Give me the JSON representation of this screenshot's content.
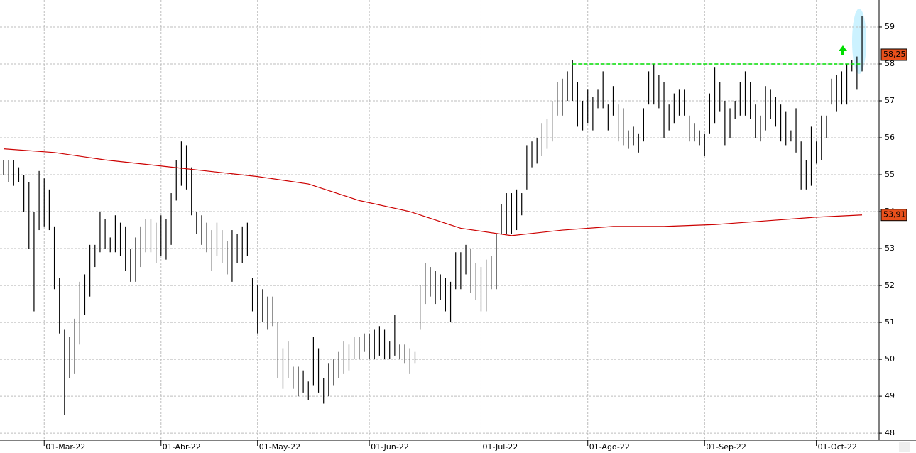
{
  "chart_data": {
    "type": "ohlc",
    "xlim": [
      -0.7,
      172.35
    ],
    "ylim": [
      47.81,
      59.73
    ],
    "yticks": [
      48,
      49,
      50,
      51,
      52,
      53,
      54,
      55,
      56,
      57,
      58,
      59
    ],
    "xticks": [
      {
        "value": 8,
        "label": "01-Mar-22"
      },
      {
        "value": 31,
        "label": "01-Abr-22"
      },
      {
        "value": 50,
        "label": "01-May-22"
      },
      {
        "value": 72,
        "label": "01-Jun-22"
      },
      {
        "value": 94,
        "label": "01-Jul-22"
      },
      {
        "value": 115,
        "label": "01-Ago-22"
      },
      {
        "value": 138,
        "label": "01-Sep-22"
      },
      {
        "value": 160,
        "label": "01-Oct-22"
      }
    ],
    "grid": true,
    "color": "#000000",
    "high": [
      55.4,
      55.4,
      55.4,
      55.2,
      55.0,
      54.8,
      54.0,
      55.1,
      54.9,
      54.6,
      53.6,
      52.2,
      50.8,
      50.6,
      51.1,
      52.1,
      52.3,
      53.1,
      53.1,
      54.0,
      53.8,
      53.3,
      53.9,
      53.7,
      53.6,
      53.0,
      53.3,
      53.6,
      53.8,
      53.8,
      53.7,
      53.9,
      53.8,
      54.5,
      55.4,
      55.9,
      55.8,
      55.2,
      54.0,
      53.9,
      53.7,
      53.5,
      53.7,
      53.5,
      53.2,
      53.5,
      53.4,
      53.6,
      53.7,
      52.2,
      52.0,
      51.9,
      51.7,
      51.7,
      51.0,
      50.3,
      50.5,
      49.8,
      49.8,
      49.7,
      49.4,
      50.6,
      50.3,
      49.5,
      49.9,
      50.0,
      50.2,
      50.5,
      50.4,
      50.6,
      50.6,
      50.7,
      50.7,
      50.8,
      50.9,
      50.8,
      50.5,
      51.2,
      50.4,
      50.4,
      50.3,
      50.2,
      52.0,
      52.6,
      52.5,
      52.4,
      52.3,
      52.2,
      52.1,
      52.9,
      52.9,
      53.1,
      53.0,
      52.6,
      52.5,
      52.7,
      52.8,
      53.4,
      54.2,
      54.5,
      54.5,
      54.6,
      54.5,
      55.8,
      55.9,
      56.0,
      56.4,
      56.5,
      57.0,
      57.5,
      57.6,
      57.8,
      58.1,
      57.5,
      57.0,
      57.3,
      57.1,
      57.3,
      57.8,
      56.9,
      57.4,
      56.9,
      56.8,
      56.2,
      56.3,
      56.1,
      56.8,
      57.8,
      58.0,
      57.7,
      57.5,
      56.9,
      57.2,
      57.3,
      57.3,
      56.6,
      56.4,
      56.2,
      56.1,
      57.2,
      57.9,
      57.5,
      57.0,
      56.8,
      57.0,
      57.5,
      57.8,
      57.5,
      56.9,
      56.6,
      57.4,
      57.3,
      57.1,
      56.9,
      56.7,
      56.2,
      56.8,
      55.9,
      55.4,
      56.3,
      55.9,
      56.6,
      56.6,
      57.6,
      57.7,
      57.8,
      58.0,
      58.1,
      58.2,
      59.3
    ],
    "low": [
      55.0,
      54.8,
      54.7,
      54.8,
      54.0,
      53.0,
      51.3,
      53.5,
      53.6,
      53.5,
      51.9,
      50.7,
      48.5,
      49.5,
      49.6,
      50.4,
      51.2,
      51.7,
      52.5,
      52.9,
      53.0,
      52.9,
      52.9,
      52.8,
      52.4,
      52.1,
      52.1,
      52.5,
      52.9,
      52.9,
      52.6,
      52.8,
      52.7,
      53.1,
      54.3,
      54.7,
      54.6,
      53.9,
      53.4,
      53.1,
      52.9,
      52.4,
      52.8,
      52.6,
      52.3,
      52.1,
      52.6,
      52.6,
      52.8,
      51.3,
      50.7,
      51.0,
      50.8,
      50.9,
      49.5,
      49.2,
      49.5,
      49.2,
      49.0,
      49.1,
      48.9,
      49.3,
      49.1,
      48.8,
      49.0,
      49.3,
      49.5,
      49.6,
      49.7,
      50.0,
      50.0,
      50.2,
      50.0,
      50.0,
      50.1,
      50.0,
      50.0,
      50.1,
      50.0,
      49.9,
      49.6,
      49.9,
      50.8,
      51.5,
      51.7,
      51.5,
      51.6,
      51.3,
      51.0,
      51.9,
      51.9,
      52.3,
      51.8,
      51.6,
      51.3,
      51.3,
      51.9,
      51.9,
      53.4,
      53.4,
      53.4,
      53.5,
      53.9,
      54.6,
      55.2,
      55.3,
      55.5,
      55.7,
      55.9,
      56.6,
      56.6,
      57.0,
      57.0,
      56.3,
      56.2,
      56.4,
      56.2,
      56.8,
      56.8,
      56.2,
      56.6,
      55.9,
      55.8,
      55.7,
      55.8,
      55.6,
      55.9,
      56.9,
      56.9,
      56.8,
      56.0,
      56.2,
      56.4,
      56.6,
      56.6,
      55.9,
      55.9,
      55.8,
      55.5,
      56.1,
      56.4,
      56.7,
      55.8,
      56.0,
      56.5,
      56.6,
      56.6,
      56.5,
      56.0,
      55.9,
      56.2,
      56.5,
      56.3,
      55.9,
      55.8,
      55.9,
      55.6,
      54.6,
      54.6,
      54.7,
      55.3,
      55.4,
      56.0,
      56.9,
      56.7,
      56.9,
      56.9,
      57.8,
      57.3,
      57.8
    ],
    "moving_average": {
      "x": [
        0,
        10,
        20,
        30,
        40,
        50,
        60,
        70,
        80,
        90,
        100,
        110,
        120,
        130,
        140,
        150,
        160,
        169
      ],
      "values": [
        55.7,
        55.6,
        55.4,
        55.25,
        55.1,
        54.95,
        54.75,
        54.3,
        54.0,
        53.55,
        53.35,
        53.5,
        53.6,
        53.6,
        53.65,
        53.75,
        53.85,
        53.91
      ],
      "color": "#cc0000"
    },
    "resistance": {
      "x": [
        112,
        169
      ],
      "value": 58.0,
      "color": "#00dd00"
    },
    "price_labels": [
      {
        "value": 58.25,
        "label": "58,25"
      },
      {
        "value": 53.91,
        "label": "53,91"
      }
    ]
  }
}
